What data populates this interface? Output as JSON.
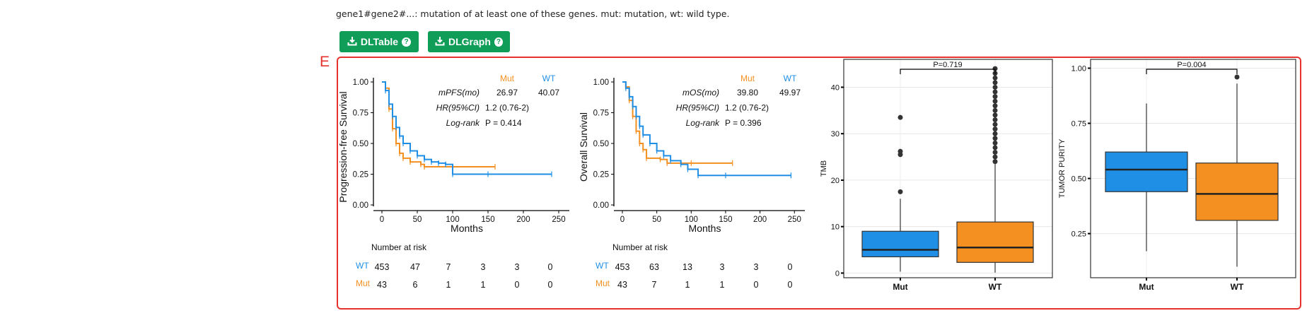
{
  "note": "gene1#gene2#...: mutation of at least one of these genes. mut: mutation, wt: wild type.",
  "buttons": {
    "dl_table": "DLTable",
    "dl_graph": "DLGraph"
  },
  "panel_label": "E",
  "colors": {
    "mut": "#f39021",
    "wt": "#1f8fe5",
    "panel_border": "#e5322d",
    "button": "#0f9d58"
  },
  "chart_data": [
    {
      "type": "line",
      "kind": "kaplan-meier",
      "ylabel": "Progression-free Survival",
      "xlabel": "Months",
      "xticks": [
        "0",
        "50",
        "100",
        "150",
        "200",
        "250"
      ],
      "yticks": [
        "0.00",
        "0.25",
        "0.50",
        "0.75",
        "1.00"
      ],
      "xlim": [
        0,
        260
      ],
      "ylim": [
        0,
        1
      ],
      "legend": [
        "Mut",
        "WT"
      ],
      "stats": [
        {
          "label": "mPFS(mo)",
          "mut": "26.97",
          "wt": "40.07"
        },
        {
          "label": "HR(95%CI)",
          "value": "1.2 (0.76-2)"
        },
        {
          "label": "Log-rank",
          "value": "P = 0.414"
        }
      ],
      "series": [
        {
          "name": "Mut",
          "x": [
            0,
            5,
            10,
            15,
            20,
            25,
            30,
            40,
            55,
            60,
            100,
            160
          ],
          "y": [
            1.0,
            0.95,
            0.78,
            0.62,
            0.5,
            0.42,
            0.38,
            0.35,
            0.33,
            0.31,
            0.31,
            0.31
          ]
        },
        {
          "name": "WT",
          "x": [
            0,
            5,
            10,
            15,
            20,
            25,
            30,
            40,
            50,
            60,
            70,
            80,
            90,
            100,
            150,
            240
          ],
          "y": [
            1.0,
            0.93,
            0.82,
            0.72,
            0.63,
            0.56,
            0.5,
            0.44,
            0.4,
            0.37,
            0.35,
            0.34,
            0.33,
            0.25,
            0.25,
            0.25
          ]
        }
      ],
      "risk_table": {
        "title": "Number at risk",
        "rows": [
          {
            "name": "WT",
            "values": [
              "453",
              "47",
              "7",
              "3",
              "3",
              "0"
            ]
          },
          {
            "name": "Mut",
            "values": [
              "43",
              "6",
              "1",
              "1",
              "0",
              "0"
            ]
          }
        ]
      }
    },
    {
      "type": "line",
      "kind": "kaplan-meier",
      "ylabel": "Overall Survival",
      "xlabel": "Months",
      "xticks": [
        "0",
        "50",
        "100",
        "150",
        "200",
        "250"
      ],
      "yticks": [
        "0.00",
        "0.25",
        "0.50",
        "0.75",
        "1.00"
      ],
      "xlim": [
        0,
        260
      ],
      "ylim": [
        0,
        1
      ],
      "legend": [
        "Mut",
        "WT"
      ],
      "stats": [
        {
          "label": "mOS(mo)",
          "mut": "39.80",
          "wt": "49.97"
        },
        {
          "label": "HR(95%CI)",
          "value": "1.2 (0.76-2)"
        },
        {
          "label": "Log-rank",
          "value": "P = 0.396"
        }
      ],
      "series": [
        {
          "name": "Mut",
          "x": [
            0,
            5,
            10,
            15,
            20,
            25,
            30,
            35,
            55,
            65,
            100,
            160
          ],
          "y": [
            1.0,
            0.96,
            0.85,
            0.72,
            0.6,
            0.5,
            0.45,
            0.38,
            0.37,
            0.34,
            0.34,
            0.34
          ]
        },
        {
          "name": "WT",
          "x": [
            0,
            5,
            10,
            15,
            20,
            25,
            30,
            40,
            50,
            60,
            70,
            85,
            95,
            110,
            150,
            245
          ],
          "y": [
            1.0,
            0.95,
            0.88,
            0.8,
            0.72,
            0.64,
            0.57,
            0.5,
            0.44,
            0.4,
            0.36,
            0.33,
            0.29,
            0.24,
            0.24,
            0.24
          ]
        }
      ],
      "risk_table": {
        "title": "Number at risk",
        "rows": [
          {
            "name": "WT",
            "values": [
              "453",
              "63",
              "13",
              "3",
              "3",
              "0"
            ]
          },
          {
            "name": "Mut",
            "values": [
              "43",
              "7",
              "1",
              "1",
              "0",
              "0"
            ]
          }
        ]
      }
    },
    {
      "type": "box",
      "ylabel": "TMB",
      "categories": [
        "Mut",
        "WT"
      ],
      "ylim": [
        -1,
        46
      ],
      "yticks": [
        0,
        10,
        20,
        30,
        40
      ],
      "pvalue": "P=0.719",
      "boxes": [
        {
          "name": "Mut",
          "q1": 3.5,
          "median": 5,
          "q3": 9,
          "lower": 0.3,
          "upper": 16,
          "outliers": [
            17.5,
            25.5,
            26.2,
            33.5
          ]
        },
        {
          "name": "WT",
          "q1": 2.3,
          "median": 5.5,
          "q3": 11,
          "lower": 0.1,
          "upper": 23.5,
          "outliers": [
            24,
            25,
            26,
            27,
            28,
            29,
            30,
            31,
            32,
            33,
            34,
            35,
            36,
            37,
            38,
            39,
            40,
            41,
            42,
            43,
            44
          ]
        }
      ]
    },
    {
      "type": "box",
      "ylabel": "TUMOR PURITY",
      "categories": [
        "Mut",
        "WT"
      ],
      "ylim": [
        0.05,
        1.04
      ],
      "yticks": [
        0.25,
        0.5,
        0.75,
        1.0
      ],
      "yticklabels": [
        "0.25",
        "0.50",
        "0.75",
        "1.00"
      ],
      "pvalue": "P=0.004",
      "boxes": [
        {
          "name": "Mut",
          "q1": 0.44,
          "median": 0.54,
          "q3": 0.62,
          "lower": 0.17,
          "upper": 0.84,
          "outliers": []
        },
        {
          "name": "WT",
          "q1": 0.31,
          "median": 0.43,
          "q3": 0.57,
          "lower": 0.1,
          "upper": 0.93,
          "outliers": [
            0.96
          ]
        }
      ]
    }
  ]
}
